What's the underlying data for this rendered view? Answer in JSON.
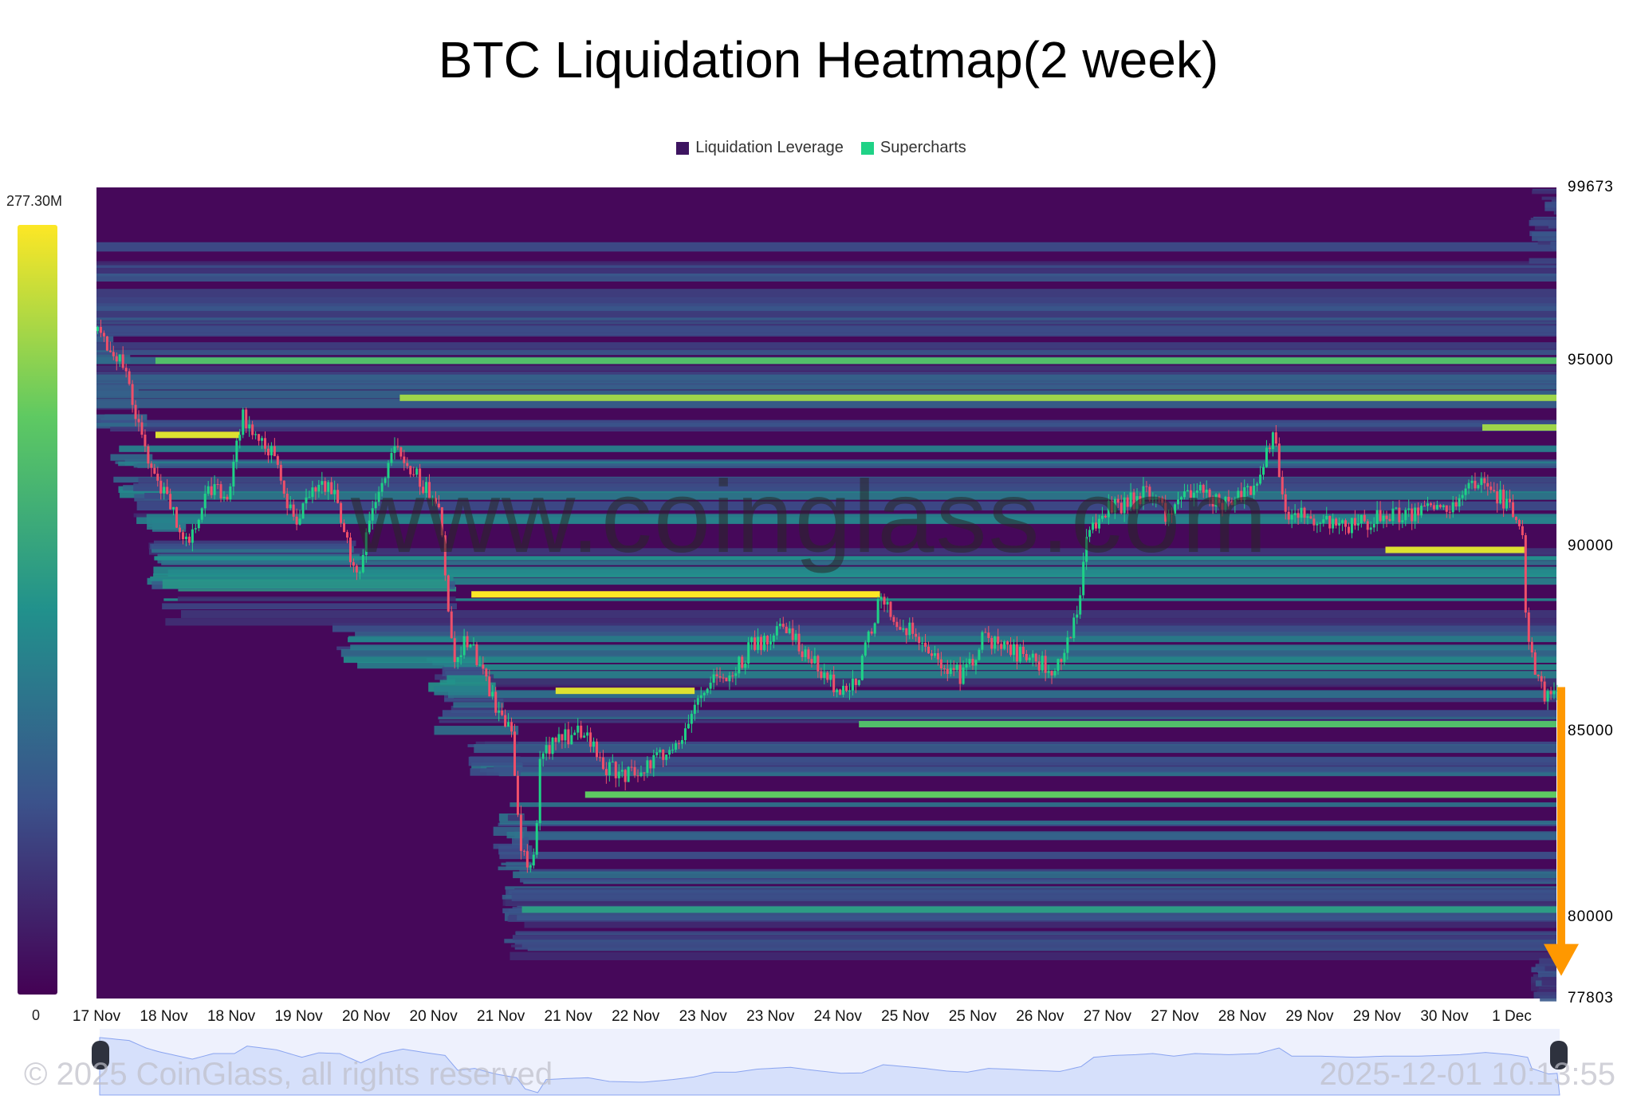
{
  "chart_data": {
    "type": "heatmap",
    "title": "BTC Liquidation Heatmap(2 week)",
    "legend": [
      "Liquidation Leverage",
      "Supercharts"
    ],
    "legend_colors": {
      "Liquidation Leverage": "#3d1460",
      "Supercharts": "#1fd286"
    },
    "legend_placement": "top",
    "colorbar": {
      "max_label": "277.30M",
      "min_label": "0",
      "colormap": "viridis"
    },
    "yaxis": {
      "side": "right",
      "range": [
        77803,
        99673
      ],
      "ticks": [
        "99673",
        "95000",
        "90000",
        "85000",
        "80000",
        "77803"
      ]
    },
    "xaxis": {
      "ticks": [
        "17 Nov",
        "18 Nov",
        "18 Nov",
        "19 Nov",
        "20 Nov",
        "20 Nov",
        "21 Nov",
        "21 Nov",
        "22 Nov",
        "23 Nov",
        "23 Nov",
        "24 Nov",
        "25 Nov",
        "25 Nov",
        "26 Nov",
        "27 Nov",
        "27 Nov",
        "28 Nov",
        "29 Nov",
        "29 Nov",
        "30 Nov",
        "1 Dec"
      ]
    },
    "price_series": [
      [
        "11-17 00",
        95800
      ],
      [
        "11-17 07",
        95000
      ],
      [
        "11-17 11",
        93000
      ],
      [
        "11-17 14",
        92000
      ],
      [
        "11-17 22",
        90000
      ],
      [
        "11-18 03",
        91500
      ],
      [
        "11-18 08",
        91500
      ],
      [
        "11-18 11",
        93500
      ],
      [
        "11-18 18",
        92500
      ],
      [
        "11-19 00",
        90500
      ],
      [
        "11-19 04",
        91700
      ],
      [
        "11-19 09",
        91500
      ],
      [
        "11-19 14",
        89000
      ],
      [
        "11-19 19",
        91500
      ],
      [
        "11-20 00",
        92700
      ],
      [
        "11-20 05",
        91800
      ],
      [
        "11-20 10",
        91000
      ],
      [
        "11-20 13",
        87000
      ],
      [
        "11-20 17",
        87500
      ],
      [
        "11-20 22",
        86000
      ],
      [
        "11-21 03",
        85000
      ],
      [
        "11-21 05",
        82000
      ],
      [
        "11-21 08",
        81000
      ],
      [
        "11-21 10",
        84500
      ],
      [
        "11-21 15",
        84800
      ],
      [
        "11-21 20",
        85000
      ],
      [
        "11-22 01",
        84000
      ],
      [
        "11-22 09",
        83800
      ],
      [
        "11-22 16",
        84500
      ],
      [
        "11-22 21",
        85200
      ],
      [
        "11-23 02",
        86500
      ],
      [
        "11-23 07",
        86500
      ],
      [
        "11-23 12",
        87300
      ],
      [
        "11-23 20",
        87800
      ],
      [
        "11-24 00",
        87200
      ],
      [
        "11-24 08",
        86200
      ],
      [
        "11-24 13",
        86300
      ],
      [
        "11-24 18",
        88500
      ],
      [
        "11-24 23",
        88000
      ],
      [
        "11-25 04",
        87500
      ],
      [
        "11-25 09",
        86800
      ],
      [
        "11-25 14",
        86500
      ],
      [
        "11-25 19",
        87500
      ],
      [
        "11-26 00",
        87300
      ],
      [
        "11-26 05",
        87000
      ],
      [
        "11-26 12",
        86700
      ],
      [
        "11-26 17",
        88000
      ],
      [
        "11-26 20",
        90500
      ],
      [
        "11-27 01",
        91000
      ],
      [
        "11-27 06",
        91200
      ],
      [
        "11-27 10",
        91500
      ],
      [
        "11-27 15",
        90800
      ],
      [
        "11-27 20",
        91500
      ],
      [
        "11-28 04",
        91200
      ],
      [
        "11-28 11",
        91500
      ],
      [
        "11-28 16",
        93000
      ],
      [
        "11-28 19",
        90800
      ],
      [
        "11-29 02",
        90800
      ],
      [
        "11-29 10",
        90500
      ],
      [
        "11-29 17",
        90800
      ],
      [
        "11-30 01",
        90800
      ],
      [
        "11-30 11",
        91200
      ],
      [
        "11-30 17",
        91800
      ],
      [
        "11-30 23",
        91200
      ],
      [
        "12-01 03",
        90500
      ],
      [
        "12-01 04",
        87500
      ],
      [
        "12-01 08",
        86000
      ],
      [
        "12-01 10",
        86200
      ]
    ],
    "key_liquidation_bands": [
      {
        "price": 95000,
        "from": "11-17 14",
        "intensity": 0.7
      },
      {
        "price": 94000,
        "from": "11-20 00",
        "intensity": 0.85
      },
      {
        "price": 93200,
        "from": "11-30 17",
        "intensity": 0.85
      },
      {
        "price": 93000,
        "from": "11-17 14",
        "to": "11-18 10",
        "intensity": 0.95
      },
      {
        "price": 89900,
        "from": "11-29 18",
        "to": "12-01 03",
        "intensity": 0.95
      },
      {
        "price": 88700,
        "from": "11-20 17",
        "to": "11-24 18",
        "intensity": 1.0
      },
      {
        "price": 86100,
        "from": "11-21 13",
        "to": "11-22 22",
        "intensity": 0.95
      },
      {
        "price": 85200,
        "from": "11-24 13",
        "intensity": 0.7
      },
      {
        "price": 83300,
        "from": "11-21 20",
        "intensity": 0.75
      },
      {
        "price": 80200,
        "from": "11-21 05",
        "intensity": 0.55
      }
    ],
    "annotation": {
      "type": "arrow",
      "direction": "down",
      "color": "#ff9800",
      "from_price": 86200,
      "to_price": 78800
    },
    "candle_colors": {
      "up": "#1fd286",
      "down": "#ef4f6a"
    }
  },
  "watermark": "www.coinglass.com",
  "footer": {
    "copyright": "© 2025 CoinGlass, all rights reserved",
    "timestamp": "2025-12-01 10:13:55"
  }
}
